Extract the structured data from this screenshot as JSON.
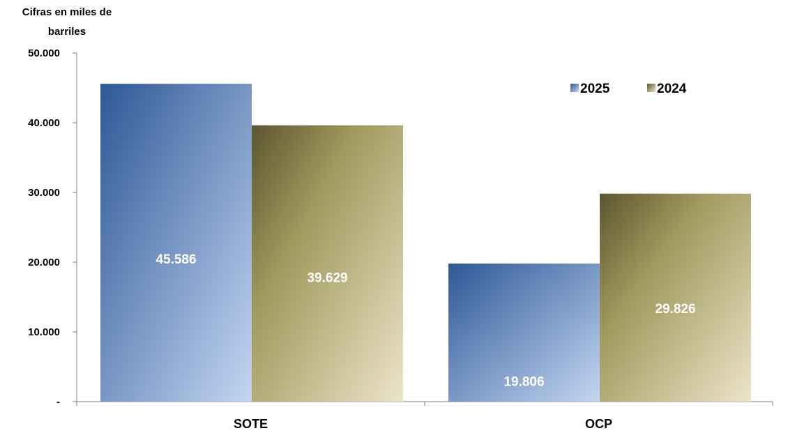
{
  "chart_data": {
    "type": "bar",
    "unit_label": [
      "Cifras en miles de",
      "barriles"
    ],
    "categories": [
      "SOTE",
      "OCP"
    ],
    "series": [
      {
        "name": "2025",
        "values": [
          45586,
          19806
        ],
        "labels": [
          "45.586",
          "19.806"
        ],
        "color_dark": "#2e5896",
        "color_light": "#c3d6f2"
      },
      {
        "name": "2024",
        "values": [
          39629,
          29826
        ],
        "labels": [
          "39.629",
          "29.826"
        ],
        "color_dark": "#5c5630",
        "color_light": "#ece4c9"
      }
    ],
    "ylim": [
      0,
      50000
    ],
    "yticks": [
      0,
      10000,
      20000,
      30000,
      40000,
      50000
    ],
    "ytick_labels": [
      "-",
      "10.000",
      "20.000",
      "30.000",
      "40.000",
      "50.000"
    ],
    "legend": {
      "placement": "top-right",
      "entries": [
        "2025",
        "2024"
      ]
    },
    "grid": false
  }
}
